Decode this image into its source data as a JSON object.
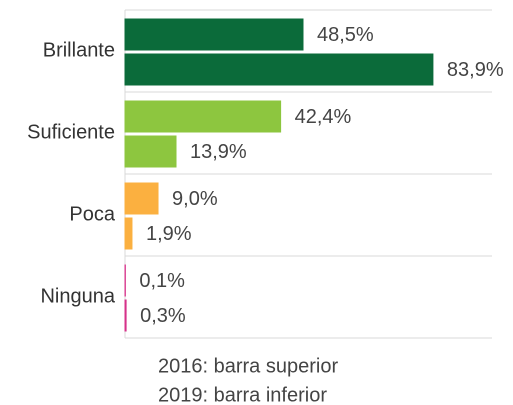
{
  "chart_data": {
    "type": "bar",
    "orientation": "horizontal",
    "categories": [
      "Brillante",
      "Suficiente",
      "Poca",
      "Ninguna"
    ],
    "colors": [
      "#0b6b3a",
      "#8dc63f",
      "#fbb040",
      "#d6338a"
    ],
    "series": [
      {
        "values": [
          48.5,
          42.4,
          9.0,
          0.1
        ],
        "value_labels": [
          "48,5%",
          "42,4%",
          "9,0%",
          "0,1%"
        ]
      },
      {
        "values": [
          83.9,
          13.9,
          1.9,
          0.3
        ],
        "value_labels": [
          "83,9%",
          "13,9%",
          "1,9%",
          "0,3%"
        ]
      }
    ],
    "xlim": [
      0,
      100
    ],
    "annotations": [
      "2016: barra superior",
      "2019: barra inferior"
    ],
    "grid": true
  }
}
